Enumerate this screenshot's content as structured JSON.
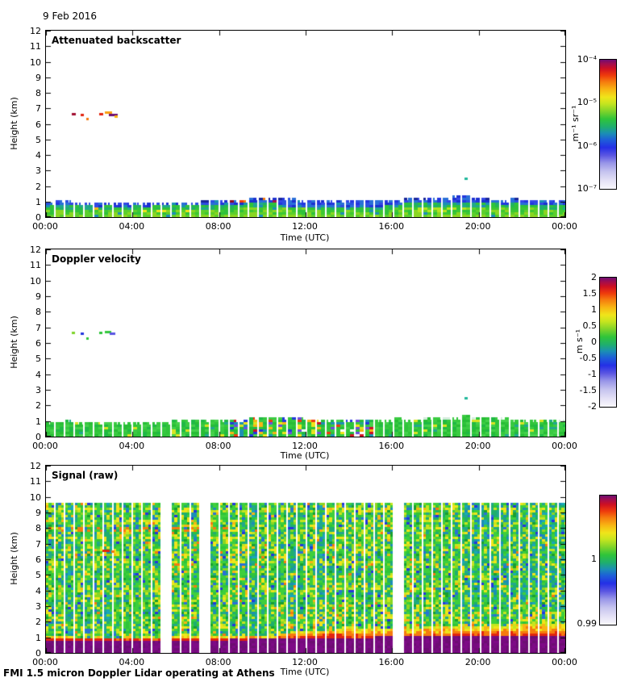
{
  "figure": {
    "date": "9 Feb 2016",
    "footer": "FMI 1.5 micron Doppler Lidar operating at Athens",
    "background": "#ffffff"
  },
  "axes": {
    "xlabel": "Time (UTC)",
    "ylabel": "Height (km)",
    "x_ticks": [
      "00:00",
      "04:00",
      "08:00",
      "12:00",
      "16:00",
      "20:00",
      "00:00"
    ],
    "y_ticks": [
      "0",
      "1",
      "2",
      "3",
      "4",
      "5",
      "6",
      "7",
      "8",
      "9",
      "10",
      "11",
      "12"
    ]
  },
  "colormap": [
    [
      0.0,
      "#f8f7fc"
    ],
    [
      0.06,
      "#e6e3f6"
    ],
    [
      0.13,
      "#c7c5ef"
    ],
    [
      0.2,
      "#9895e8"
    ],
    [
      0.26,
      "#5a55e2"
    ],
    [
      0.32,
      "#2430e6"
    ],
    [
      0.38,
      "#1d5fd8"
    ],
    [
      0.43,
      "#1b8fb4"
    ],
    [
      0.48,
      "#1fae6e"
    ],
    [
      0.54,
      "#2fc43a"
    ],
    [
      0.6,
      "#7ed32a"
    ],
    [
      0.66,
      "#c6e51f"
    ],
    [
      0.71,
      "#efe51a"
    ],
    [
      0.77,
      "#f8b513"
    ],
    [
      0.83,
      "#f57a0e"
    ],
    [
      0.88,
      "#ee3a0c"
    ],
    [
      0.93,
      "#cf1022"
    ],
    [
      0.97,
      "#a00d50"
    ],
    [
      1.0,
      "#6d0d72"
    ]
  ],
  "panels": [
    {
      "title": "Attenuated backscatter",
      "colorbar": {
        "unit": "m⁻¹ sr⁻¹",
        "ticks": [
          "10⁻⁴",
          "10⁻⁵",
          "10⁻⁶",
          "10⁻⁷"
        ]
      }
    },
    {
      "title": "Doppler velocity",
      "colorbar": {
        "unit": "m s⁻¹",
        "ticks": [
          "2",
          "1.5",
          "1",
          "0.5",
          "0",
          "-0.5",
          "-1",
          "-1.5",
          "-2"
        ]
      }
    },
    {
      "title": "Signal (raw)",
      "colorbar": {
        "unit": "",
        "ticks_sparse": [
          {
            "label": "1",
            "frac": 0.5
          },
          {
            "label": "0.99",
            "frac": 0.0
          }
        ]
      }
    }
  ],
  "chart_data": [
    {
      "type": "heatmap",
      "title": "Attenuated backscatter",
      "xlabel": "Time (UTC)",
      "ylabel": "Height (km)",
      "x_range_hours": [
        0,
        24
      ],
      "ylim_km": [
        0,
        12
      ],
      "x_ticks": [
        "00:00",
        "04:00",
        "08:00",
        "12:00",
        "16:00",
        "20:00",
        "00:00"
      ],
      "colorbar": {
        "scale": "log",
        "range": [
          1e-07,
          0.0001
        ],
        "ticks": [
          "10⁻⁴",
          "10⁻⁵",
          "10⁻⁶",
          "10⁻⁷"
        ],
        "unit": "m⁻¹ sr⁻¹"
      },
      "profile_interval_min": 27,
      "boundary_layer_top_km": [
        [
          0,
          0.92
        ],
        [
          3,
          0.86
        ],
        [
          5,
          0.88
        ],
        [
          7,
          0.95
        ],
        [
          8.5,
          1.02
        ],
        [
          9.5,
          1.18
        ],
        [
          11,
          1.12
        ],
        [
          13,
          1.02
        ],
        [
          15,
          1.0
        ],
        [
          16,
          1.05
        ],
        [
          18,
          1.15
        ],
        [
          19.5,
          1.22
        ],
        [
          21,
          1.1
        ],
        [
          23,
          1.02
        ],
        [
          24,
          1.0
        ]
      ],
      "description": "Aerosol boundary layer 0-1.2 km: green/yellow near surface, blue caps; warm (red/orange) streaks 02:30-03:30 near 0.5 km and 08:30-10:30 at layer top; bright yellow-green band 17:00-19:30 near 0.3-0.5 km; isolated cloud speckles near 6.5 km 01:00-03:15 and one echo at 2.4 km 19:20.",
      "features": [
        {
          "time_h": 1.2,
          "height_km": 6.62,
          "w": 5,
          "color": "#a00d30"
        },
        {
          "time_h": 1.62,
          "height_km": 6.55,
          "w": 4,
          "color": "#e2250f"
        },
        {
          "time_h": 1.85,
          "height_km": 6.28,
          "w": 3,
          "color": "#f57a0e"
        },
        {
          "time_h": 2.45,
          "height_km": 6.6,
          "w": 5,
          "color": "#e2250f"
        },
        {
          "time_h": 2.72,
          "height_km": 6.72,
          "w": 9,
          "color": "#f8a013"
        },
        {
          "time_h": 2.9,
          "height_km": 6.52,
          "w": 11,
          "color": "#6d0d72"
        },
        {
          "time_h": 3.15,
          "height_km": 6.45,
          "w": 4,
          "color": "#f8b513"
        },
        {
          "time_h": 19.35,
          "height_km": 2.42,
          "w": 4,
          "color": "#21b89c"
        }
      ],
      "render": {
        "low": [
          "#8ad622",
          "#5ccf2c",
          "#3cc832",
          "#2fc13a"
        ],
        "mid": [
          "#2fc13a",
          "#25b94e",
          "#1fae6e",
          "#21a88c",
          "#2fc43a"
        ],
        "high": [
          "#2a6fd8",
          "#2b50e0",
          "#2336de",
          "#3347e6",
          "#1b2fd0",
          "#2a6fd8"
        ],
        "warm": [
          "#efe51a",
          "#f8b513",
          "#ee3a0c",
          "#f57a0e"
        ],
        "top_red": [
          "#cf1022",
          "#ee3a0c",
          "#a00d50",
          "#f57a0e",
          "#8b0a20"
        ],
        "teal": "#1b8fb4",
        "bright_band": "#b8e31e",
        "cap": "#18269a"
      }
    },
    {
      "type": "heatmap",
      "title": "Doppler velocity",
      "xlabel": "Time (UTC)",
      "ylabel": "Height (km)",
      "x_range_hours": [
        0,
        24
      ],
      "ylim_km": [
        0,
        12
      ],
      "x_ticks": [
        "00:00",
        "04:00",
        "08:00",
        "12:00",
        "16:00",
        "20:00",
        "00:00"
      ],
      "colorbar": {
        "scale": "linear",
        "range": [
          -2,
          2
        ],
        "ticks": [
          "2",
          "1.5",
          "1",
          "0.5",
          "0",
          "-0.5",
          "-1",
          "-1.5",
          "-2"
        ],
        "unit": "m s⁻¹"
      },
      "typical_velocity_ms": 0,
      "noisy_window_h": [
        8.6,
        15.3
      ],
      "boundary_layer_top_km": [
        [
          0,
          0.92
        ],
        [
          3,
          0.86
        ],
        [
          5,
          0.88
        ],
        [
          7,
          0.95
        ],
        [
          8.5,
          1.02
        ],
        [
          9.5,
          1.18
        ],
        [
          11,
          1.12
        ],
        [
          13,
          1.02
        ],
        [
          15,
          1.0
        ],
        [
          16,
          1.05
        ],
        [
          18,
          1.15
        ],
        [
          19.5,
          1.22
        ],
        [
          21,
          1.1
        ],
        [
          23,
          1.02
        ],
        [
          24,
          1.0
        ]
      ],
      "description": "Velocities near 0 m/s (green) in the 0-1.2 km layer; turbulent multicoloured (blue/red/orange) noise 08:30-15:15; same mid-level speckles near 6.5 km before 03:15 and echo at 2.4 km 19:20.",
      "features": [
        {
          "time_h": 1.2,
          "height_km": 6.62,
          "w": 4,
          "color": "#7ed32a"
        },
        {
          "time_h": 1.62,
          "height_km": 6.55,
          "w": 4,
          "color": "#2336de"
        },
        {
          "time_h": 1.85,
          "height_km": 6.28,
          "w": 3,
          "color": "#2fc43a"
        },
        {
          "time_h": 2.45,
          "height_km": 6.6,
          "w": 4,
          "color": "#2fc43a"
        },
        {
          "time_h": 2.72,
          "height_km": 6.66,
          "w": 8,
          "color": "#35c83e"
        },
        {
          "time_h": 2.95,
          "height_km": 6.55,
          "w": 7,
          "color": "#5a55e2"
        },
        {
          "time_h": 19.35,
          "height_km": 2.42,
          "w": 4,
          "color": "#21b89c"
        }
      ],
      "render": {
        "greens": [
          "#2fc43a",
          "#3bcb42",
          "#27bd35",
          "#45d14b",
          "#1fb944",
          "#35c83e"
        ],
        "noise": [
          "#2336de",
          "#ee3a0c",
          "#f8b513",
          "#1b8fb4",
          "#efe51a",
          "#6d4de0",
          "#cf1022",
          "#2fc43a",
          "#2fc43a",
          "#ffffff"
        ],
        "pale_cap": "#d4ecdc",
        "teal": "#21a88c",
        "yellow": "#d8e422"
      }
    },
    {
      "type": "heatmap",
      "title": "Signal (raw)",
      "xlabel": "Time (UTC)",
      "ylabel": "Height (km)",
      "x_range_hours": [
        0,
        24
      ],
      "ylim_km": [
        0,
        12
      ],
      "x_ticks": [
        "00:00",
        "04:00",
        "08:00",
        "12:00",
        "16:00",
        "20:00",
        "00:00"
      ],
      "colorbar": {
        "scale": "linear",
        "range": [
          0.99,
          1.01
        ],
        "ticks": [
          "1",
          "0.99"
        ],
        "unit": ""
      },
      "field_top_km": 9.5,
      "surface_band_top_km": [
        [
          0,
          0.75
        ],
        [
          6,
          0.73
        ],
        [
          10,
          0.8
        ],
        [
          13,
          0.92
        ],
        [
          16,
          0.95
        ],
        [
          19,
          1.0
        ],
        [
          22,
          1.05
        ],
        [
          24,
          1.05
        ]
      ],
      "description": "Raw signal-to-noise field 0-9.5 km: speckled green/yellow noise with thin white column gaps; saturated dark-purple surface band 0-0.8 km deepening to ~1.0 km after 12:00, topped by a red-orange-yellow transition layer that thickens through the afternoon; slightly more teal/cyan texture aloft after 20:00; red dash at 6.5 km near 02:40.",
      "features": [
        {
          "time_h": 2.62,
          "height_km": 6.5,
          "w": 9,
          "color": "#e2250f"
        },
        {
          "time_h": 3.0,
          "height_km": 6.45,
          "w": 4,
          "color": "#f57a0e"
        }
      ],
      "render": {
        "base": [
          [
            "#3ecf3c",
            26
          ],
          [
            "#2fc43a",
            12
          ],
          [
            "#8ad622",
            12
          ],
          [
            "#c6e51f",
            8
          ],
          [
            "#efe51a",
            8
          ],
          [
            "#1fae6e",
            10
          ],
          [
            "#21a88c",
            6
          ],
          [
            "#1b8fb4",
            5
          ],
          [
            "#2a6fd8",
            3
          ],
          [
            "#2336de",
            2
          ],
          [
            "#f8b513",
            3
          ],
          [
            "#f57a0e",
            1
          ],
          [
            "#18a030",
            4
          ]
        ],
        "purple": [
          "#760b7e",
          "#6d0d72",
          "#7e0a86"
        ],
        "red": "#e2250f",
        "orange": "#f57a0e",
        "amber": "#f8b513",
        "yellow": "#efe51a",
        "yellow_green": "#c6e51f",
        "teal_set": [
          "#1fae6e",
          "#21a88c",
          "#1b8fb4",
          "#18a8b8"
        ],
        "gaps_h": [
          5.66,
          7.25,
          10.72,
          14.2,
          16.28,
          21.4
        ],
        "transition_km": [
          [
            0,
            0.18
          ],
          [
            10,
            0.22
          ],
          [
            12,
            0.4
          ],
          [
            14,
            0.55
          ],
          [
            16,
            0.55
          ],
          [
            18,
            0.6
          ],
          [
            20,
            0.65
          ],
          [
            24,
            0.7
          ]
        ]
      }
    }
  ]
}
